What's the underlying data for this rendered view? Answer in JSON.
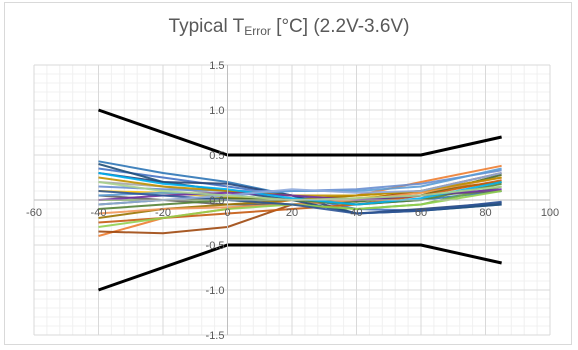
{
  "chart_data": {
    "type": "line",
    "title_main": "Typical T",
    "title_sub": "Error",
    "title_rest": " [°C] (2.2V-3.6V)",
    "xlim": [
      -60,
      100
    ],
    "ylim": [
      -1.5,
      1.5
    ],
    "x_ticks": [
      "-60",
      "-40",
      "-20",
      "0",
      "20",
      "40",
      "60",
      "80",
      "100"
    ],
    "y_ticks": [
      "1.5",
      "1.0",
      "0.5",
      "0.0",
      "-0.5",
      "-1.0",
      "-1.5"
    ],
    "grid": true,
    "legend": "none",
    "limit_lines": [
      {
        "x": [
          -40,
          0,
          60,
          85
        ],
        "y": [
          1.0,
          0.5,
          0.5,
          0.7
        ],
        "color": "#000000"
      },
      {
        "x": [
          -40,
          0,
          60,
          85
        ],
        "y": [
          -1.0,
          -0.5,
          -0.5,
          -0.7
        ],
        "color": "#000000"
      }
    ],
    "x": [
      -40,
      -20,
      0,
      20,
      40,
      60,
      85
    ],
    "series": [
      {
        "color": "#2e75b6",
        "values": [
          0.43,
          0.3,
          0.2,
          0.05,
          -0.05,
          0.0,
          0.1
        ]
      },
      {
        "color": "#ed7d31",
        "values": [
          -0.4,
          -0.2,
          -0.1,
          0.0,
          0.05,
          0.2,
          0.38
        ]
      },
      {
        "color": "#a5a5a5",
        "values": [
          0.2,
          0.15,
          0.05,
          0.0,
          0.0,
          0.1,
          0.25
        ]
      },
      {
        "color": "#ffc000",
        "values": [
          0.1,
          0.08,
          0.03,
          0.0,
          0.02,
          0.08,
          0.2
        ]
      },
      {
        "color": "#4472c4",
        "values": [
          0.35,
          0.25,
          0.15,
          0.05,
          -0.1,
          -0.12,
          -0.05
        ]
      },
      {
        "color": "#70ad47",
        "values": [
          0.0,
          0.0,
          0.0,
          -0.05,
          -0.1,
          -0.05,
          0.15
        ]
      },
      {
        "color": "#264478",
        "values": [
          0.3,
          0.2,
          0.18,
          0.05,
          -0.15,
          -0.1,
          -0.03
        ]
      },
      {
        "color": "#9e480e",
        "values": [
          -0.35,
          -0.37,
          -0.3,
          -0.05,
          0.0,
          0.1,
          0.3
        ]
      },
      {
        "color": "#636363",
        "values": [
          0.05,
          0.0,
          -0.05,
          -0.05,
          0.0,
          0.05,
          0.1
        ]
      },
      {
        "color": "#997300",
        "values": [
          -0.2,
          -0.1,
          -0.05,
          0.0,
          0.05,
          0.1,
          0.2
        ]
      },
      {
        "color": "#43682b",
        "values": [
          -0.05,
          0.0,
          0.02,
          0.0,
          -0.02,
          0.05,
          0.28
        ]
      },
      {
        "color": "#698ed0",
        "values": [
          0.15,
          0.12,
          0.1,
          0.1,
          0.12,
          0.18,
          0.33
        ]
      },
      {
        "color": "#f1975a",
        "values": [
          -0.15,
          -0.1,
          -0.08,
          -0.05,
          0.0,
          0.08,
          0.25
        ]
      },
      {
        "color": "#1f4e79",
        "values": [
          0.4,
          0.2,
          0.1,
          0.0,
          -0.15,
          -0.12,
          -0.05
        ]
      },
      {
        "color": "#c55a11",
        "values": [
          -0.25,
          -0.2,
          -0.15,
          -0.1,
          -0.05,
          0.05,
          0.22
        ]
      },
      {
        "color": "#5b9bd5",
        "values": [
          0.05,
          0.08,
          0.05,
          0.1,
          0.1,
          0.15,
          0.35
        ]
      },
      {
        "color": "#548235",
        "values": [
          -0.1,
          -0.05,
          0.0,
          0.0,
          -0.05,
          0.0,
          0.18
        ]
      },
      {
        "color": "#bf9000",
        "values": [
          0.25,
          0.15,
          0.1,
          0.05,
          0.05,
          0.1,
          0.25
        ]
      },
      {
        "color": "#7030a0",
        "values": [
          0.0,
          0.05,
          0.08,
          0.05,
          0.0,
          0.05,
          0.12
        ]
      },
      {
        "color": "#00b0f0",
        "values": [
          0.3,
          0.18,
          0.12,
          0.02,
          -0.05,
          0.02,
          0.2
        ]
      },
      {
        "color": "#92d050",
        "values": [
          -0.3,
          -0.2,
          -0.1,
          -0.05,
          -0.1,
          -0.05,
          0.1
        ]
      },
      {
        "color": "#2f5597",
        "values": [
          0.1,
          0.05,
          0.0,
          -0.05,
          -0.15,
          -0.12,
          -0.02
        ]
      },
      {
        "color": "#8faadc",
        "values": [
          -0.05,
          0.0,
          0.05,
          0.12,
          0.08,
          0.1,
          0.3
        ]
      },
      {
        "color": "#a9d18e",
        "values": [
          0.2,
          0.1,
          0.05,
          0.0,
          0.02,
          0.05,
          0.15
        ]
      }
    ]
  }
}
